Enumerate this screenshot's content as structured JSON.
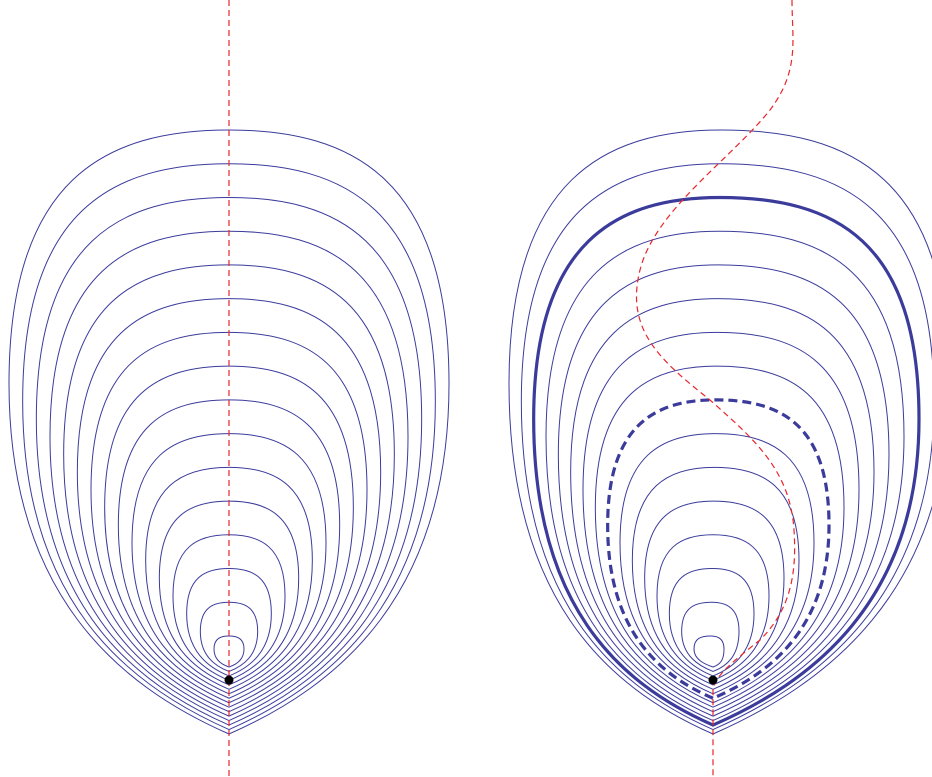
{
  "figure": {
    "panels": [
      {
        "id": "left",
        "contour_count": 16,
        "axis_style": "straight",
        "highlighted_contours": []
      },
      {
        "id": "right",
        "contour_count": 16,
        "axis_style": "s-curve",
        "highlighted_contours": [
          {
            "index": 13,
            "style": "thick-solid"
          },
          {
            "index": 7,
            "style": "thick-dashed"
          }
        ]
      }
    ],
    "colors": {
      "contour": "#3b3b9c",
      "axis": "#e8262b",
      "point": "#000000",
      "background": "#ffffff"
    }
  }
}
